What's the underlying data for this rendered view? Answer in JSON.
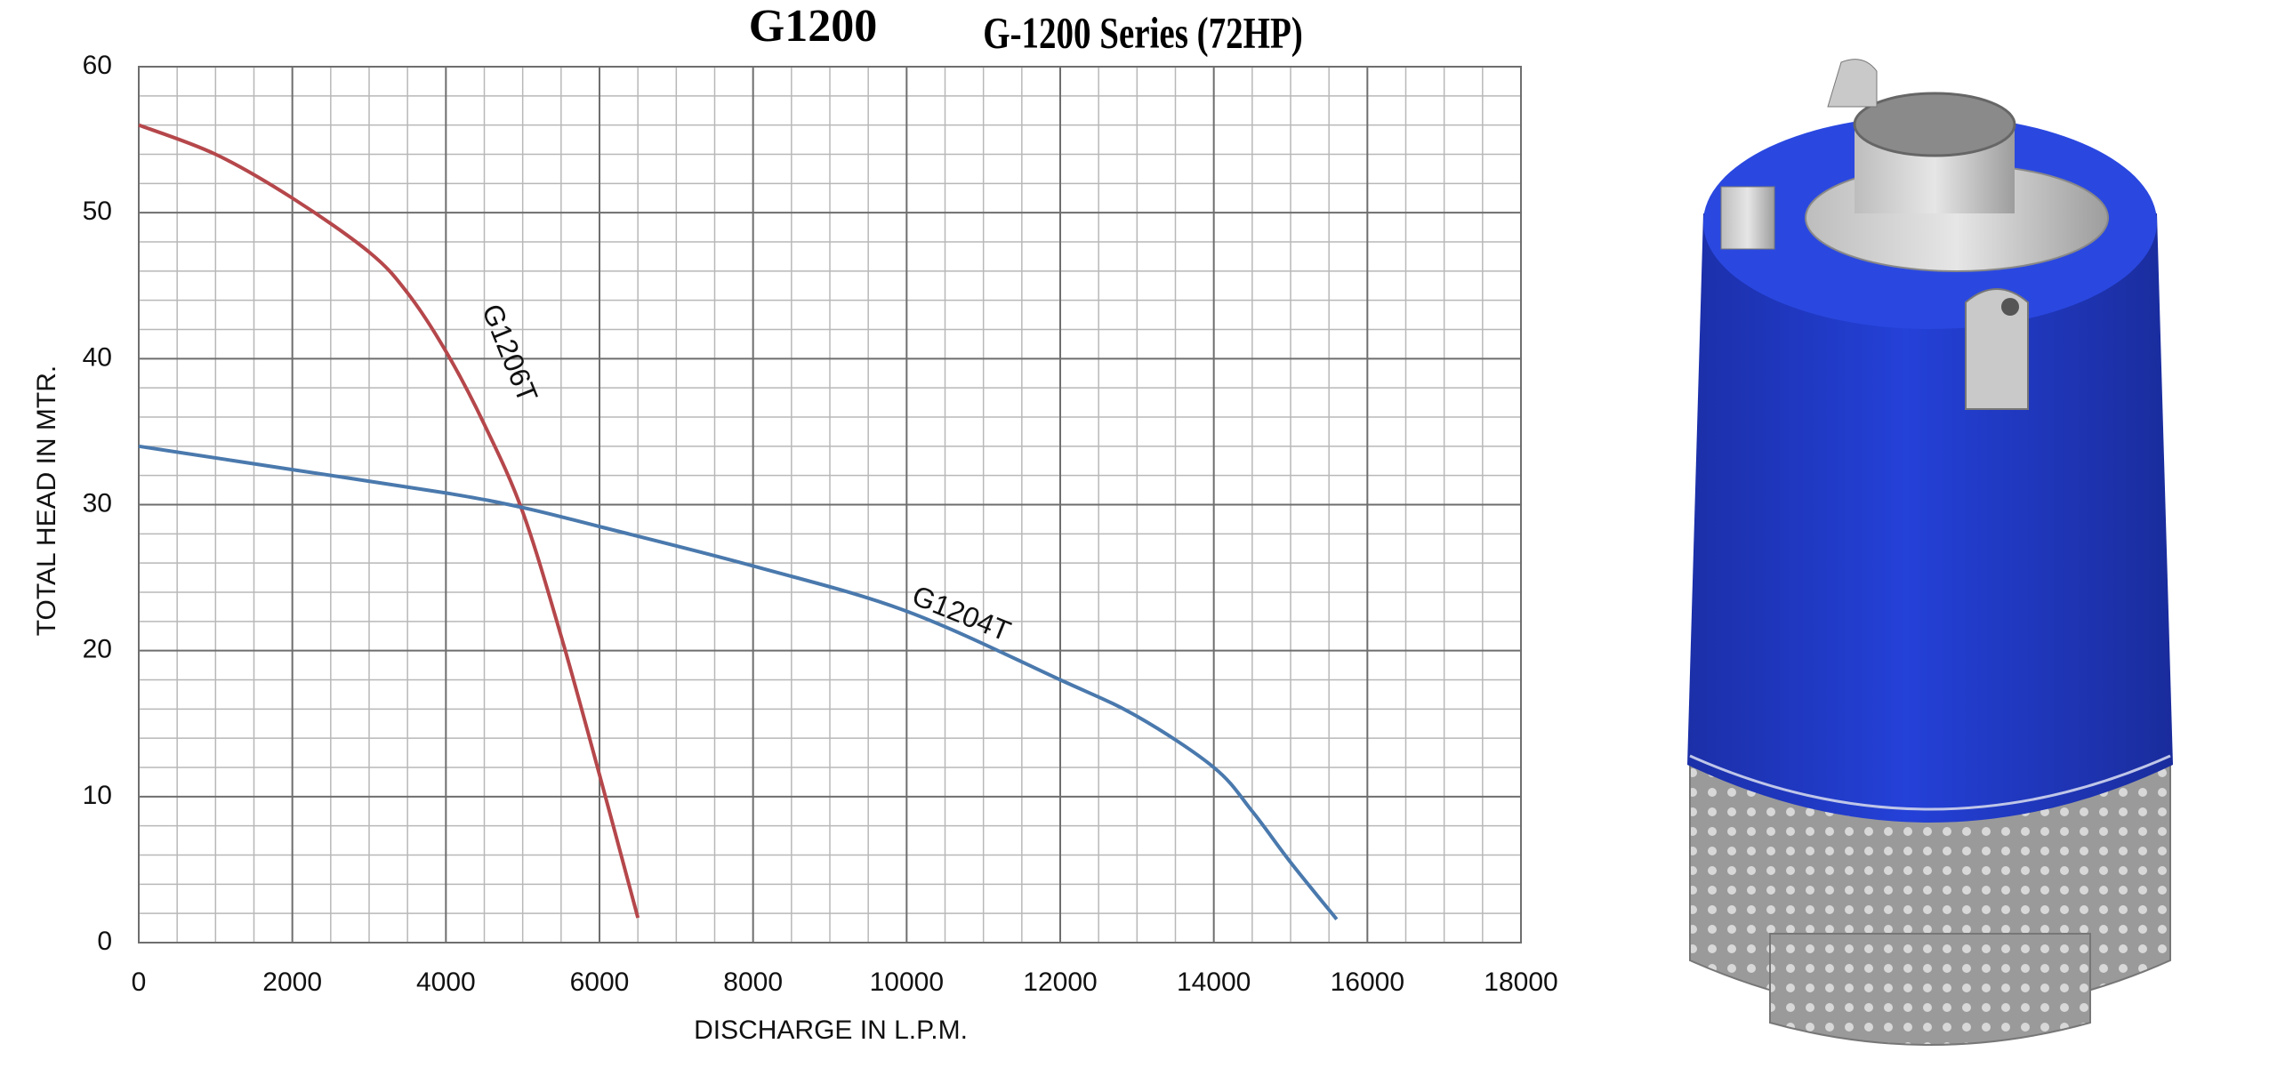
{
  "chart_data": {
    "type": "line",
    "title": "G1200",
    "subtitle": "G-1200 Series (72HP)",
    "x_label": "DISCHARGE IN L.P.M.",
    "y_label": "TOTAL HEAD IN MTR.",
    "xlim": [
      0,
      18000
    ],
    "ylim": [
      0,
      60
    ],
    "xticks": [
      0,
      2000,
      4000,
      6000,
      8000,
      10000,
      12000,
      14000,
      16000,
      18000
    ],
    "yticks": [
      0,
      10,
      20,
      30,
      40,
      50,
      60
    ],
    "grid": true,
    "series": [
      {
        "name": "G1206T",
        "color": "#b5474b",
        "x": [
          0,
          1000,
          2000,
          3000,
          3500,
          4000,
          4500,
          5000,
          5500,
          6000,
          6500
        ],
        "values": [
          56,
          54,
          51,
          47.3,
          44.5,
          40.5,
          35.5,
          29.5,
          21,
          11.5,
          1.7
        ]
      },
      {
        "name": "G1204T",
        "color": "#4a79ad",
        "x": [
          0,
          2000,
          4000,
          5000,
          6000,
          8000,
          10000,
          12000,
          13000,
          14000,
          14500,
          15000,
          15600
        ],
        "values": [
          34,
          32.4,
          30.8,
          29.8,
          28.5,
          25.8,
          22.7,
          18,
          15.5,
          12,
          9,
          5.5,
          1.6
        ]
      }
    ]
  }
}
